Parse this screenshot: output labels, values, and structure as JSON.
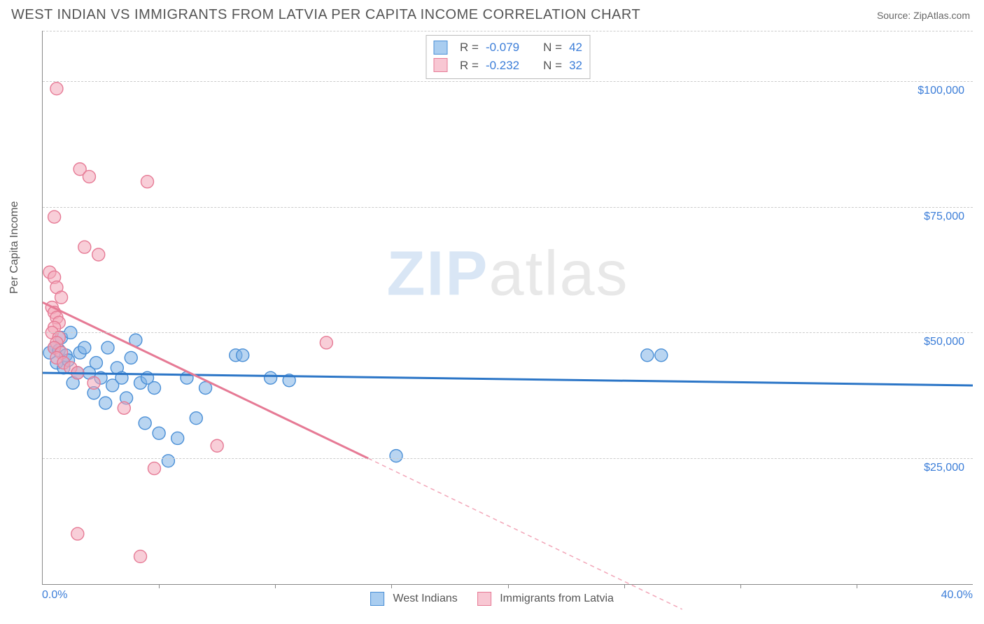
{
  "header": {
    "title": "WEST INDIAN VS IMMIGRANTS FROM LATVIA PER CAPITA INCOME CORRELATION CHART",
    "source": "Source: ZipAtlas.com"
  },
  "watermark": {
    "zip": "ZIP",
    "atlas": "atlas"
  },
  "chart": {
    "type": "scatter",
    "ylabel": "Per Capita Income",
    "xlim": [
      0,
      40
    ],
    "ylim": [
      0,
      110000
    ],
    "x_tick_step_pct": 5,
    "x_min_label": "0.0%",
    "x_max_label": "40.0%",
    "y_ticks": [
      {
        "value": 25000,
        "label": "$25,000"
      },
      {
        "value": 50000,
        "label": "$50,000"
      },
      {
        "value": 75000,
        "label": "$75,000"
      },
      {
        "value": 100000,
        "label": "$100,000"
      }
    ],
    "grid_color": "#cccccc",
    "background_color": "#ffffff",
    "axis_color": "#888888",
    "tick_label_color": "#3b7dd8",
    "series": [
      {
        "name": "West Indians",
        "color_fill": "#7fb3e5",
        "color_stroke": "#4a8fd6",
        "fill_opacity": 0.55,
        "marker_radius": 9,
        "r": -0.079,
        "n": 42,
        "trend": {
          "x1": 0,
          "y1": 42000,
          "x2": 40,
          "y2": 39500,
          "stroke": "#2c76c7",
          "width": 3,
          "dash": ""
        },
        "points": [
          [
            0.3,
            46000
          ],
          [
            0.5,
            47000
          ],
          [
            0.6,
            44000
          ],
          [
            0.7,
            46500
          ],
          [
            0.8,
            49000
          ],
          [
            0.9,
            43000
          ],
          [
            1.0,
            45500
          ],
          [
            1.1,
            44500
          ],
          [
            1.2,
            50000
          ],
          [
            1.3,
            40000
          ],
          [
            1.5,
            42000
          ],
          [
            1.6,
            46000
          ],
          [
            1.8,
            47000
          ],
          [
            2.0,
            42000
          ],
          [
            2.2,
            38000
          ],
          [
            2.3,
            44000
          ],
          [
            2.5,
            41000
          ],
          [
            2.7,
            36000
          ],
          [
            2.8,
            47000
          ],
          [
            3.0,
            39500
          ],
          [
            3.2,
            43000
          ],
          [
            3.4,
            41000
          ],
          [
            3.6,
            37000
          ],
          [
            3.8,
            45000
          ],
          [
            4.0,
            48500
          ],
          [
            4.2,
            40000
          ],
          [
            4.4,
            32000
          ],
          [
            4.5,
            41000
          ],
          [
            4.8,
            39000
          ],
          [
            5.0,
            30000
          ],
          [
            5.4,
            24500
          ],
          [
            5.8,
            29000
          ],
          [
            6.2,
            41000
          ],
          [
            6.6,
            33000
          ],
          [
            7.0,
            39000
          ],
          [
            8.3,
            45500
          ],
          [
            8.6,
            45500
          ],
          [
            9.8,
            41000
          ],
          [
            10.6,
            40500
          ],
          [
            15.2,
            25500
          ],
          [
            26.0,
            45500
          ],
          [
            26.6,
            45500
          ]
        ]
      },
      {
        "name": "Immigrants from Latvia",
        "color_fill": "#f2a6b8",
        "color_stroke": "#e67a95",
        "fill_opacity": 0.55,
        "marker_radius": 9,
        "r": -0.232,
        "n": 32,
        "trend": {
          "x1": 0,
          "y1": 56000,
          "x2": 14,
          "y2": 25000,
          "stroke": "#e67a95",
          "width": 3,
          "dash": ""
        },
        "trend_ext": {
          "x1": 14,
          "y1": 25000,
          "x2": 27.5,
          "y2": -5000,
          "stroke": "#f2a6b8",
          "width": 1.5,
          "dash": "6,5"
        },
        "points": [
          [
            0.6,
            98500
          ],
          [
            1.6,
            82500
          ],
          [
            2.0,
            81000
          ],
          [
            4.5,
            80000
          ],
          [
            0.5,
            73000
          ],
          [
            1.8,
            67000
          ],
          [
            2.4,
            65500
          ],
          [
            0.3,
            62000
          ],
          [
            0.5,
            61000
          ],
          [
            0.6,
            59000
          ],
          [
            0.8,
            57000
          ],
          [
            0.4,
            55000
          ],
          [
            0.5,
            54000
          ],
          [
            0.6,
            53000
          ],
          [
            0.7,
            52000
          ],
          [
            0.5,
            51000
          ],
          [
            0.4,
            50000
          ],
          [
            0.7,
            49000
          ],
          [
            0.6,
            48000
          ],
          [
            0.5,
            47000
          ],
          [
            0.8,
            46000
          ],
          [
            0.6,
            45000
          ],
          [
            0.9,
            44000
          ],
          [
            1.2,
            43000
          ],
          [
            1.5,
            42000
          ],
          [
            2.2,
            40000
          ],
          [
            3.5,
            35000
          ],
          [
            4.8,
            23000
          ],
          [
            7.5,
            27500
          ],
          [
            12.2,
            48000
          ],
          [
            1.5,
            10000
          ],
          [
            4.2,
            5500
          ]
        ]
      }
    ],
    "legend_bottom": [
      {
        "label": "West Indians",
        "fill": "#a9cdf0",
        "stroke": "#4a8fd6"
      },
      {
        "label": "Immigrants from Latvia",
        "fill": "#f8c7d3",
        "stroke": "#e67a95"
      }
    ],
    "legend_box": {
      "rows": [
        {
          "swatch_fill": "#a9cdf0",
          "swatch_stroke": "#4a8fd6",
          "r": "-0.079",
          "n": "42"
        },
        {
          "swatch_fill": "#f8c7d3",
          "swatch_stroke": "#e67a95",
          "r": "-0.232",
          "n": "32"
        }
      ],
      "labels": {
        "r": "R =",
        "n": "N ="
      }
    }
  }
}
